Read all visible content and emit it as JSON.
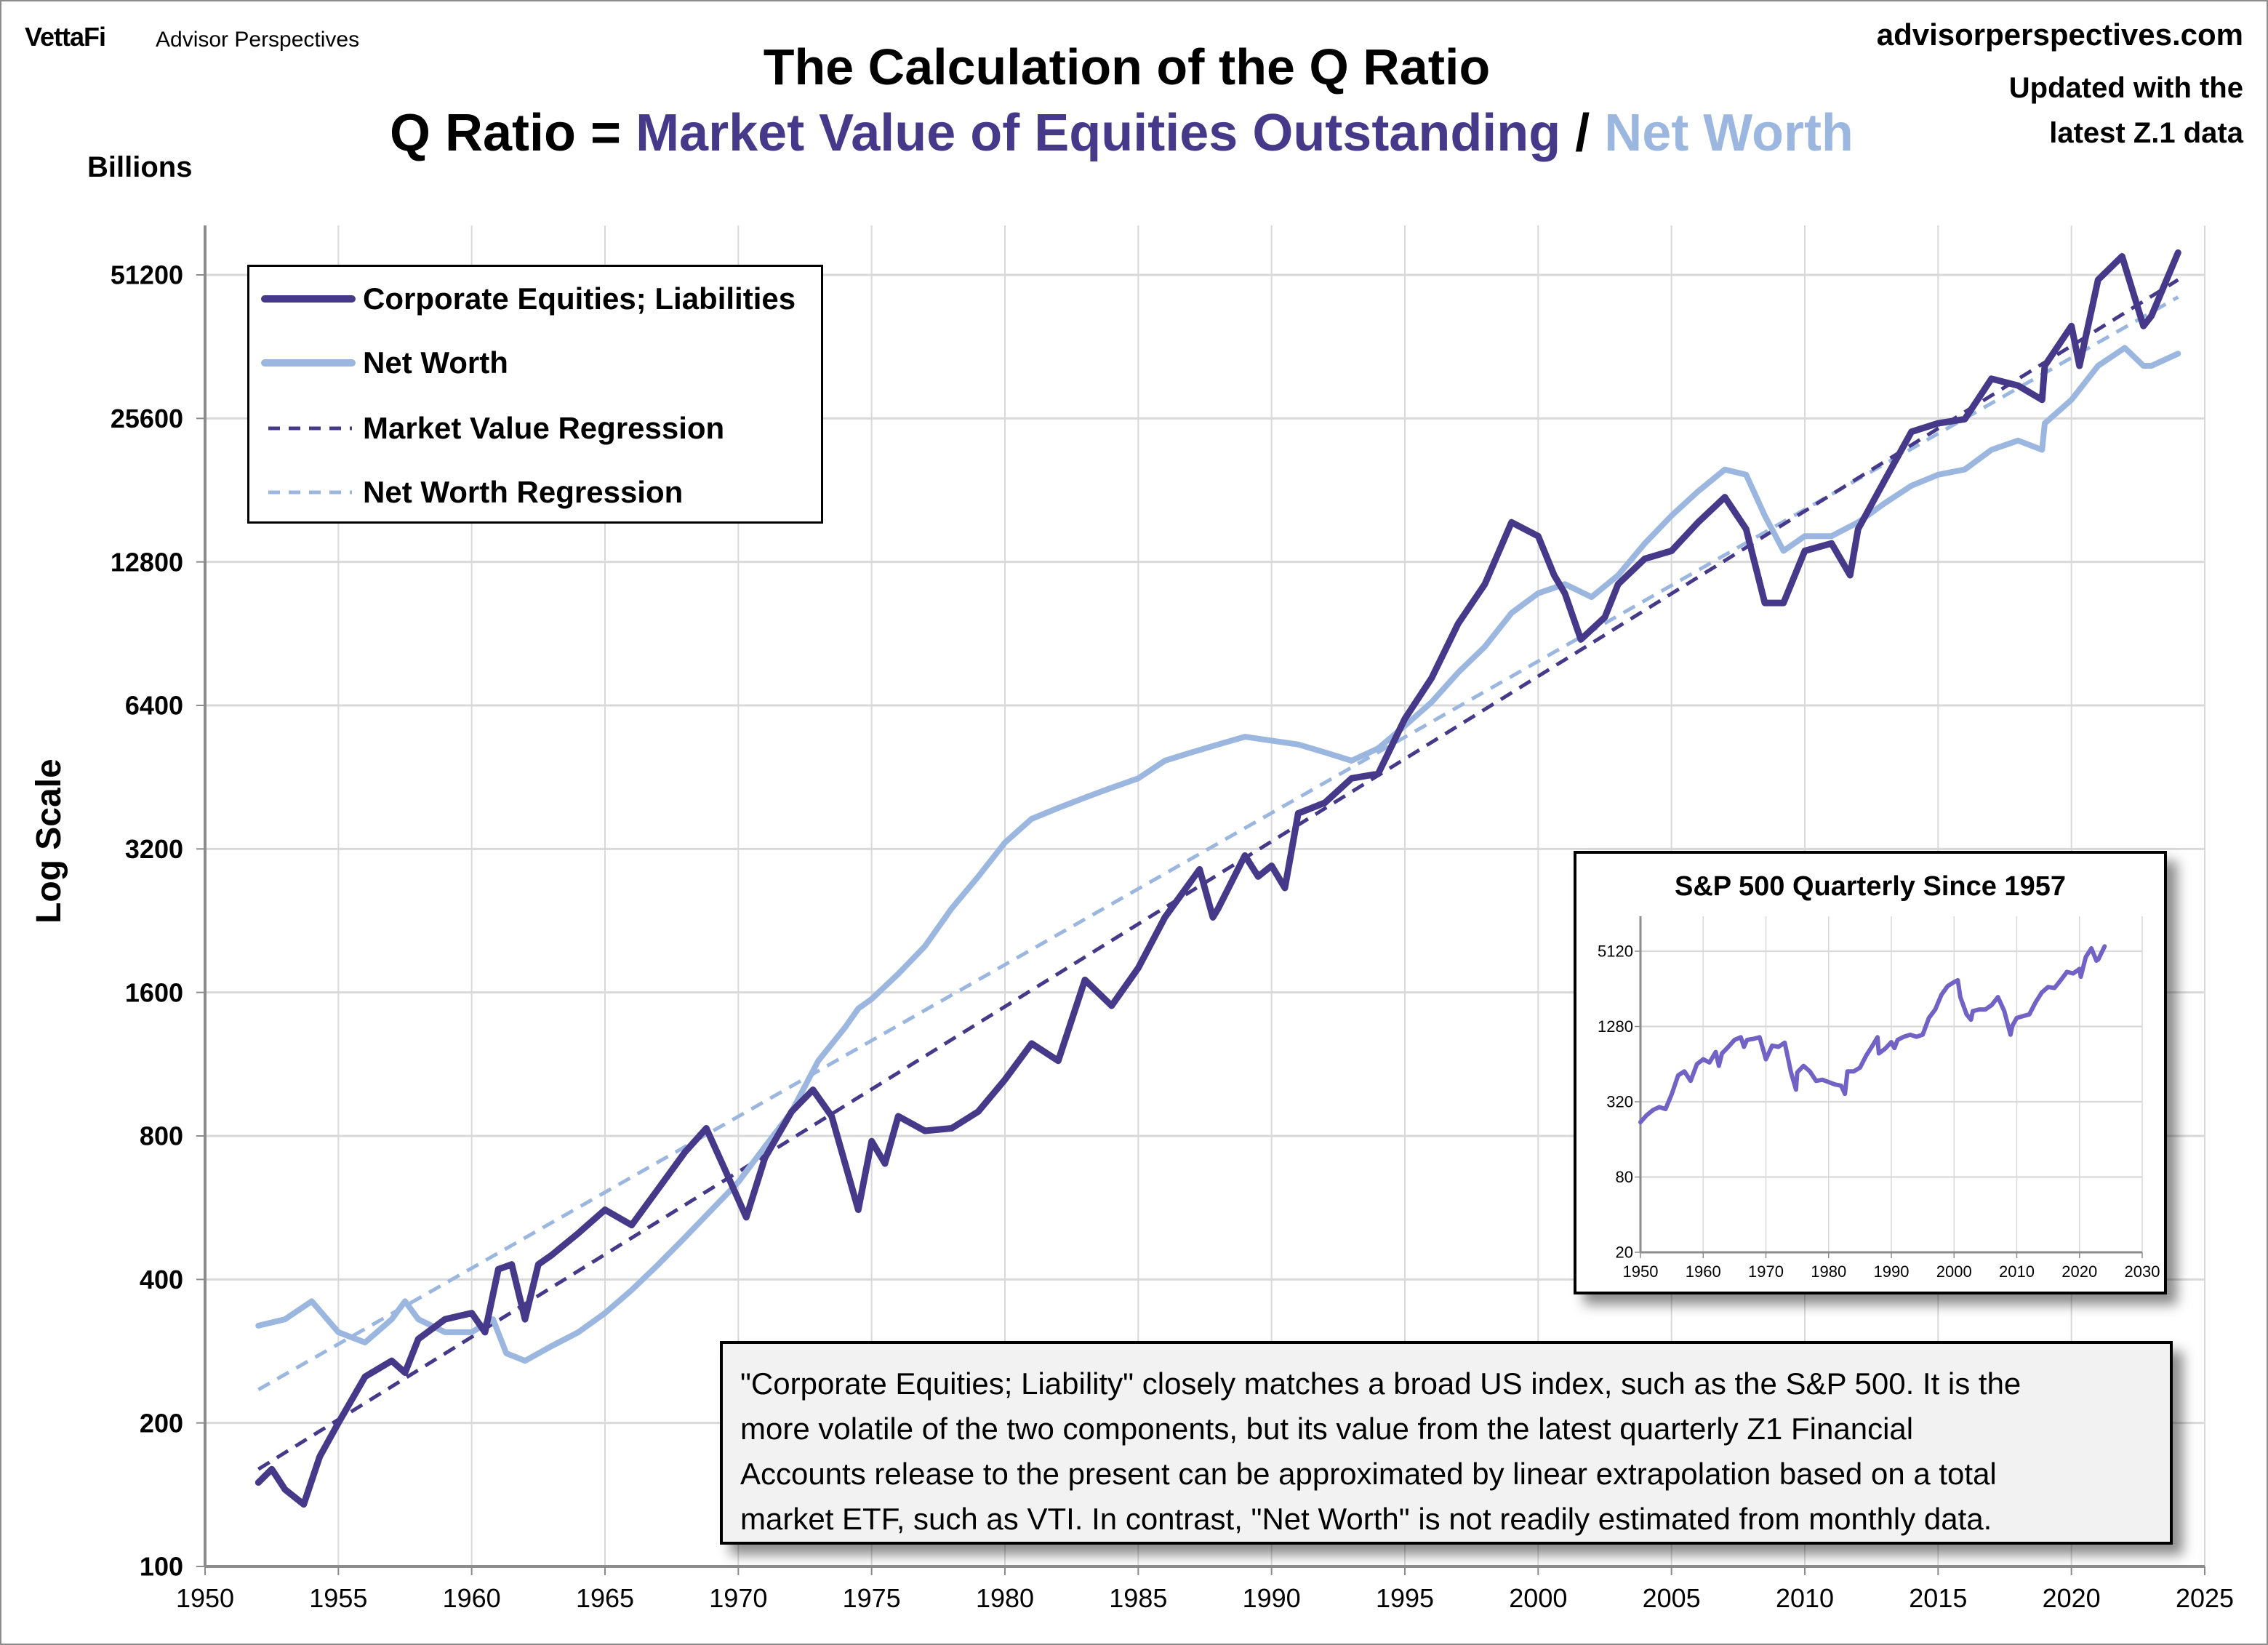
{
  "header": {
    "brand": "VettaFi",
    "brand_sub": "Advisor Perspectives",
    "site": "advisorperspectives.com",
    "updated_line1": "Updated with the",
    "updated_line2": "latest Z.1 data",
    "title": "The Calculation of the Q Ratio",
    "formula_prefix": "Q Ratio = ",
    "formula_numerator": "Market Value of Equities Outstanding",
    "formula_slash": " / ",
    "formula_denominator": "Net Worth"
  },
  "colors": {
    "equities": "#47398a",
    "net_worth": "#9bb7e0",
    "sp500": "#7262c6",
    "grid": "#d9d9d9",
    "axis": "#8c8c8c"
  },
  "chart_data": [
    {
      "type": "line",
      "title": "The Calculation of the Q Ratio",
      "xlabel": "",
      "ylabel": "Log Scale",
      "yunit_label": "Billions",
      "yscale": "log2",
      "xlim": [
        1950,
        2025
      ],
      "ylim": [
        100,
        51200
      ],
      "xticks": [
        "1950",
        "1955",
        "1960",
        "1965",
        "1970",
        "1975",
        "1980",
        "1985",
        "1990",
        "1995",
        "2000",
        "2005",
        "2010",
        "2015",
        "2020",
        "2025"
      ],
      "yticks": [
        "100",
        "200",
        "400",
        "800",
        "1600",
        "3200",
        "6400",
        "12800",
        "25600",
        "51200"
      ],
      "grid": true,
      "legend_placement": "top-left",
      "series": [
        {
          "name": "Corporate Equities; Liabilities",
          "style": "solid",
          "x": [
            1952,
            1952.5,
            1953,
            1953.7,
            1954.3,
            1955,
            1956,
            1957,
            1957.5,
            1958,
            1959,
            1960,
            1960.5,
            1961,
            1961.5,
            1962,
            1962.5,
            1963,
            1964,
            1965,
            1966,
            1967,
            1968,
            1968.8,
            1969.5,
            1970.3,
            1971,
            1972,
            1972.8,
            1973.5,
            1974.5,
            1975,
            1975.5,
            1976,
            1977,
            1978,
            1979,
            1980,
            1981,
            1982,
            1983,
            1984,
            1985,
            1986,
            1987.3,
            1987.8,
            1988,
            1989,
            1989.5,
            1990,
            1990.5,
            1991,
            1992,
            1993,
            1994,
            1995,
            1996,
            1997,
            1998,
            1999,
            2000,
            2000.6,
            2001,
            2001.6,
            2002.5,
            2003,
            2004,
            2005,
            2006,
            2007,
            2007.8,
            2008.5,
            2009.2,
            2010,
            2011,
            2011.7,
            2012,
            2013,
            2014,
            2015,
            2016,
            2017,
            2018,
            2018.9,
            2019,
            2020,
            2020.3,
            2021,
            2021.9,
            2022.7,
            2023,
            2024
          ],
          "values": [
            150,
            160,
            145,
            135,
            170,
            200,
            250,
            270,
            255,
            300,
            330,
            340,
            310,
            420,
            430,
            330,
            430,
            450,
            500,
            560,
            520,
            620,
            740,
            830,
            680,
            540,
            720,
            900,
            1000,
            880,
            560,
            780,
            700,
            880,
            820,
            830,
            900,
            1050,
            1250,
            1150,
            1700,
            1500,
            1800,
            2300,
            2900,
            2300,
            2400,
            3100,
            2800,
            2950,
            2650,
            3800,
            4000,
            4500,
            4600,
            6000,
            7300,
            9500,
            11500,
            15500,
            14500,
            12000,
            11000,
            8800,
            9800,
            11500,
            13000,
            13500,
            15500,
            17500,
            15000,
            10500,
            10500,
            13500,
            14000,
            12000,
            15000,
            19000,
            24000,
            25000,
            25500,
            31000,
            30000,
            28000,
            33000,
            40000,
            33000,
            50000,
            56000,
            40000,
            42000,
            57000
          ]
        },
        {
          "name": "Net Worth",
          "style": "solid",
          "x": [
            1952,
            1953,
            1954,
            1955,
            1956,
            1957,
            1957.5,
            1958,
            1959,
            1960,
            1960.8,
            1961.3,
            1962,
            1963,
            1964,
            1965,
            1966,
            1967,
            1968,
            1969,
            1970,
            1971,
            1972,
            1973,
            1974,
            1974.5,
            1975,
            1976,
            1977,
            1978,
            1979,
            1980,
            1981,
            1982,
            1983,
            1984,
            1985,
            1986,
            1987,
            1988,
            1989,
            1990,
            1991,
            1992,
            1993,
            1994,
            1995,
            1996,
            1997,
            1998,
            1999,
            2000,
            2001,
            2002,
            2003,
            2004,
            2005,
            2006,
            2007,
            2007.8,
            2008.5,
            2009.2,
            2010,
            2011,
            2012,
            2013,
            2014,
            2015,
            2016,
            2017,
            2018,
            2018.9,
            2019,
            2020,
            2021,
            2022,
            2022.7,
            2023,
            2024
          ],
          "values": [
            320,
            330,
            360,
            310,
            295,
            330,
            360,
            330,
            310,
            310,
            330,
            280,
            270,
            290,
            310,
            340,
            380,
            430,
            490,
            560,
            640,
            760,
            900,
            1150,
            1350,
            1480,
            1550,
            1750,
            2000,
            2400,
            2800,
            3300,
            3700,
            3900,
            4100,
            4300,
            4500,
            4900,
            5100,
            5300,
            5500,
            5400,
            5300,
            5100,
            4900,
            5200,
            5800,
            6500,
            7500,
            8500,
            10000,
            11000,
            11500,
            10800,
            12000,
            14000,
            16000,
            18000,
            20000,
            19500,
            16000,
            13500,
            14500,
            14500,
            15500,
            17000,
            18500,
            19500,
            20000,
            22000,
            23000,
            22000,
            25000,
            28000,
            33000,
            36000,
            33000,
            33000,
            35000
          ]
        },
        {
          "name": "Market Value Regression",
          "style": "dashed",
          "x": [
            1952,
            2024
          ],
          "values": [
            160,
            50000
          ]
        },
        {
          "name": "Net Worth Regression",
          "style": "dashed",
          "x": [
            1952,
            2024
          ],
          "values": [
            235,
            46000
          ]
        }
      ]
    },
    {
      "type": "line",
      "title": "S&P 500 Quarterly Since 1957",
      "yscale": "log4",
      "xlim": [
        1950,
        2030
      ],
      "ylim": [
        20,
        5120
      ],
      "xticks": [
        "1950",
        "1960",
        "1970",
        "1980",
        "1990",
        "2000",
        "2010",
        "2020",
        "2030"
      ],
      "yticks": [
        "20",
        "80",
        "320",
        "1280",
        "5120"
      ],
      "grid": true,
      "series": [
        {
          "x": [
            1950,
            1951,
            1952,
            1953,
            1954,
            1955,
            1956,
            1957,
            1958,
            1959,
            1960,
            1961,
            1962,
            1962.5,
            1963,
            1964,
            1965,
            1966,
            1966.5,
            1967,
            1968,
            1969,
            1970,
            1971,
            1972,
            1973,
            1974,
            1974.8,
            1975,
            1976,
            1977,
            1978,
            1979,
            1980,
            1981,
            1982,
            1982.6,
            1983,
            1984,
            1985,
            1986,
            1987,
            1987.8,
            1988,
            1989,
            1990,
            1990.5,
            1991,
            1992,
            1993,
            1994,
            1995,
            1996,
            1997,
            1998,
            1999,
            2000,
            2000.6,
            2001,
            2002,
            2002.7,
            2003,
            2004,
            2005,
            2006,
            2007,
            2008,
            2009,
            2009.3,
            2010,
            2011,
            2012,
            2013,
            2014,
            2015,
            2016,
            2017,
            2018,
            2019,
            2020,
            2020.2,
            2021,
            2021.9,
            2022.7,
            2023,
            2024
          ],
          "values": [
            220,
            250,
            275,
            290,
            280,
            370,
            520,
            560,
            470,
            640,
            700,
            660,
            800,
            620,
            780,
            880,
            1000,
            1050,
            880,
            1000,
            1020,
            1050,
            700,
            900,
            880,
            950,
            550,
            400,
            550,
            620,
            560,
            470,
            480,
            460,
            440,
            430,
            370,
            560,
            560,
            600,
            750,
            900,
            1050,
            780,
            850,
            960,
            860,
            1000,
            1060,
            1100,
            1060,
            1100,
            1500,
            1750,
            2300,
            2700,
            2900,
            3000,
            2200,
            1600,
            1450,
            1700,
            1750,
            1750,
            1900,
            2200,
            1700,
            1100,
            1300,
            1500,
            1550,
            1600,
            2000,
            2400,
            2650,
            2600,
            3000,
            3500,
            3400,
            3700,
            3200,
            4600,
            5400,
            4300,
            4400,
            5600
          ]
        }
      ]
    }
  ],
  "legend": [
    {
      "label": "Corporate Equities; Liabilities"
    },
    {
      "label": "Net Worth"
    },
    {
      "label": "Market Value Regression"
    },
    {
      "label": "Net Worth Regression"
    }
  ],
  "note": {
    "lines": [
      "\"Corporate Equities; Liability\" closely matches a broad US index, such as the S&P 500. It is the",
      "more volatile of the two components, but its value from the latest quarterly Z1 Financial",
      "Accounts release to the present can be approximated by linear extrapolation based on a total",
      "market ETF, such as VTI.  In contrast, \"Net Worth\" is not readily estimated from monthly data."
    ]
  }
}
